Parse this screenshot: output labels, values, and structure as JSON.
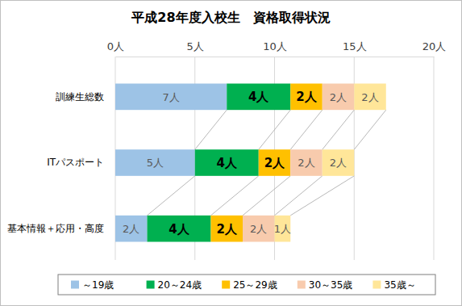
{
  "chart_data": {
    "type": "bar",
    "title": "平成28年度入校生　資格取得状況",
    "orientation": "horizontal",
    "stacked": true,
    "grid": true,
    "legend": "bottom",
    "data_labels": true,
    "categories": [
      "訓練生総数",
      "ITパスポート",
      "基本情報＋応用・高度"
    ],
    "xlim": [
      0,
      20
    ],
    "xticks": [
      {
        "value": 0,
        "label": "0人"
      },
      {
        "value": 5,
        "label": "5人"
      },
      {
        "value": 10,
        "label": "10人"
      },
      {
        "value": 15,
        "label": "15人"
      },
      {
        "value": 20,
        "label": "20人"
      }
    ],
    "series": [
      {
        "name": "～19歳",
        "color": "#9dc3e6",
        "values": [
          7,
          5,
          2
        ],
        "value_labels": [
          "7人",
          "5人",
          "2人"
        ]
      },
      {
        "name": "20～24歳",
        "color": "#00b050",
        "values": [
          4,
          4,
          4
        ],
        "value_labels": [
          "4人",
          "4人",
          "4人"
        ]
      },
      {
        "name": "25～29歳",
        "color": "#ffc000",
        "values": [
          2,
          2,
          2
        ],
        "value_labels": [
          "2人",
          "2人",
          "2人"
        ]
      },
      {
        "name": "30～35歳",
        "color": "#f8cbad",
        "values": [
          2,
          2,
          2
        ],
        "value_labels": [
          "2人",
          "2人",
          "2人"
        ]
      },
      {
        "name": "35歳～",
        "color": "#ffe699",
        "values": [
          2,
          2,
          1
        ],
        "value_labels": [
          "2人",
          "2人",
          "1人"
        ]
      }
    ]
  }
}
